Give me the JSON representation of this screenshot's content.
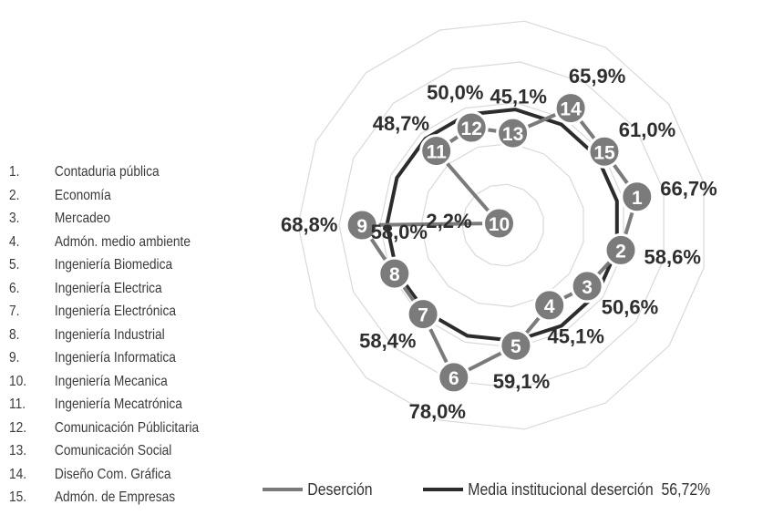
{
  "chart_data": {
    "type": "radar",
    "categories": [
      "1",
      "2",
      "3",
      "4",
      "5",
      "6",
      "7",
      "8",
      "9",
      "10",
      "11",
      "12",
      "13",
      "14",
      "15"
    ],
    "series": [
      {
        "name": "Deserción",
        "values": [
          66.7,
          58.6,
          50.6,
          45.1,
          59.1,
          78.0,
          58.4,
          58.0,
          68.8,
          2.2,
          48.7,
          50.0,
          45.1,
          65.9,
          61.0
        ],
        "labels": [
          "66,7%",
          "58,6%",
          "50,6%",
          "45,1%",
          "59,1%",
          "78,0%",
          "58,4%",
          "58,0%",
          "68,8%",
          "2,2%",
          "48,7%",
          "50,0%",
          "45,1%",
          "65,9%",
          "61,0%"
        ],
        "color": "#7b7b7b"
      },
      {
        "name": "Media institucional deserción",
        "values": [
          56.72,
          56.72,
          56.72,
          56.72,
          56.72,
          56.72,
          56.72,
          56.72,
          56.72,
          56.72,
          56.72,
          56.72,
          56.72,
          56.72,
          56.72
        ],
        "color": "#2c2c2c"
      }
    ],
    "grid": true,
    "legend_position": "bottom"
  },
  "programs": [
    {
      "num": "1.",
      "name": "Contaduria pública"
    },
    {
      "num": "2.",
      "name": "Economía"
    },
    {
      "num": "3.",
      "name": "Mercadeo"
    },
    {
      "num": "4.",
      "name": "Admón. medio ambiente"
    },
    {
      "num": "5.",
      "name": "Ingeniería Biomedica"
    },
    {
      "num": "6.",
      "name": "Ingeniería Electrica"
    },
    {
      "num": "7.",
      "name": "Ingeniería Electrónica"
    },
    {
      "num": "8.",
      "name": "Ingeniería Industrial"
    },
    {
      "num": "9.",
      "name": "Ingeniería Informatica"
    },
    {
      "num": "10.",
      "name": "Ingeniería Mecanica"
    },
    {
      "num": "11.",
      "name": "Ingeniería Mecatrónica"
    },
    {
      "num": "12.",
      "name": "Comunicación Públicitaria"
    },
    {
      "num": "13.",
      "name": "Comunicación Social"
    },
    {
      "num": "14.",
      "name": "Diseño Com. Gráfica"
    },
    {
      "num": "15.",
      "name": "Admón. de Empresas"
    }
  ],
  "legend": {
    "desercion": "Deserción",
    "media": "Media institucional deserción",
    "media_value": "56,72%"
  },
  "colors": {
    "desercion": "#7b7b7b",
    "media": "#2c2c2c",
    "marker": "#7b7b7b",
    "grid": "#d9d9d9"
  }
}
